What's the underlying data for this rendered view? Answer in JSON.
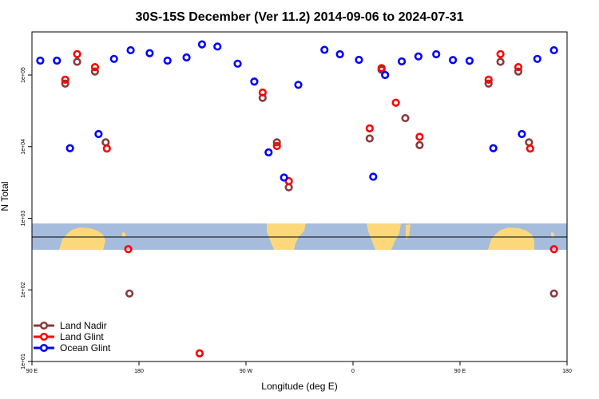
{
  "chart_data": {
    "type": "scatter",
    "title": "30S-15S December (Ver 11.2)   2014-09-06 to 2024-07-31",
    "xlabel": "Longitude (deg E)",
    "ylabel": "N Total",
    "x_ticks": [
      {
        "value": 90,
        "label": "90 E"
      },
      {
        "value": 180,
        "label": "180"
      },
      {
        "value": 270,
        "label": "90 W"
      },
      {
        "value": 360,
        "label": "0"
      },
      {
        "value": 450,
        "label": "90 E"
      },
      {
        "value": 540,
        "label": "180"
      }
    ],
    "y_ticks": [
      {
        "value": 10,
        "label": "1e+01"
      },
      {
        "value": 100,
        "label": "1e+02"
      },
      {
        "value": 1000,
        "label": "1e+03"
      },
      {
        "value": 10000,
        "label": "1e+04"
      },
      {
        "value": 100000,
        "label": "1e+05"
      }
    ],
    "xlim": [
      90,
      540
    ],
    "ylim": [
      10,
      400000
    ],
    "log_y": true,
    "grid": false,
    "legend_position": "bottom-left",
    "series": [
      {
        "name": "Land Nadir",
        "color": "#8b3a3a",
        "points": [
          [
            118,
            76000
          ],
          [
            128,
            153000
          ],
          [
            143,
            112000
          ],
          [
            152,
            11500
          ],
          [
            172,
            89
          ],
          [
            284,
            48000
          ],
          [
            296,
            11500
          ],
          [
            306,
            2700
          ],
          [
            374,
            13000
          ],
          [
            384,
            118000
          ],
          [
            404,
            25000
          ],
          [
            416,
            10500
          ],
          [
            474,
            76000
          ],
          [
            484,
            153000
          ],
          [
            499,
            112000
          ],
          [
            508,
            11500
          ],
          [
            529,
            89
          ]
        ]
      },
      {
        "name": "Land Glint",
        "color": "#ff0000",
        "points": [
          [
            118,
            86000
          ],
          [
            128,
            196000
          ],
          [
            143,
            129000
          ],
          [
            153,
            9400
          ],
          [
            171,
            370
          ],
          [
            231,
            13
          ],
          [
            284,
            57000
          ],
          [
            296,
            10200
          ],
          [
            306,
            3300
          ],
          [
            374,
            18000
          ],
          [
            384,
            125000
          ],
          [
            396,
            41000
          ],
          [
            416,
            13700
          ],
          [
            474,
            86000
          ],
          [
            484,
            196000
          ],
          [
            499,
            129000
          ],
          [
            509,
            9400
          ],
          [
            529,
            370
          ]
        ]
      },
      {
        "name": "Ocean Glint",
        "color": "#0000ff",
        "points": [
          [
            97,
            159000
          ],
          [
            111,
            159000
          ],
          [
            122,
            9500
          ],
          [
            146,
            15000
          ],
          [
            159,
            168000
          ],
          [
            173,
            222000
          ],
          [
            189,
            202000
          ],
          [
            204,
            159000
          ],
          [
            220,
            176000
          ],
          [
            233,
            268000
          ],
          [
            246,
            250000
          ],
          [
            263,
            144000
          ],
          [
            277,
            81000
          ],
          [
            289,
            8300
          ],
          [
            302,
            3700
          ],
          [
            314,
            73000
          ],
          [
            336,
            225000
          ],
          [
            349,
            195000
          ],
          [
            365,
            163000
          ],
          [
            377,
            3800
          ],
          [
            387,
            100000
          ],
          [
            401,
            155000
          ],
          [
            415,
            182000
          ],
          [
            430,
            195000
          ],
          [
            444,
            162000
          ],
          [
            458,
            158000
          ],
          [
            478,
            9500
          ],
          [
            502,
            15000
          ],
          [
            515,
            168000
          ],
          [
            529,
            222000
          ]
        ]
      }
    ]
  },
  "map_strip": {
    "ocean_color": "#a5bcdc",
    "land_color": "#fcd87a",
    "line_color": "#000000"
  },
  "legend_entries": [
    {
      "label": "Land Nadir",
      "color": "#8b3a3a"
    },
    {
      "label": "Land Glint",
      "color": "#ff0000"
    },
    {
      "label": "Ocean Glint",
      "color": "#0000ff"
    }
  ]
}
